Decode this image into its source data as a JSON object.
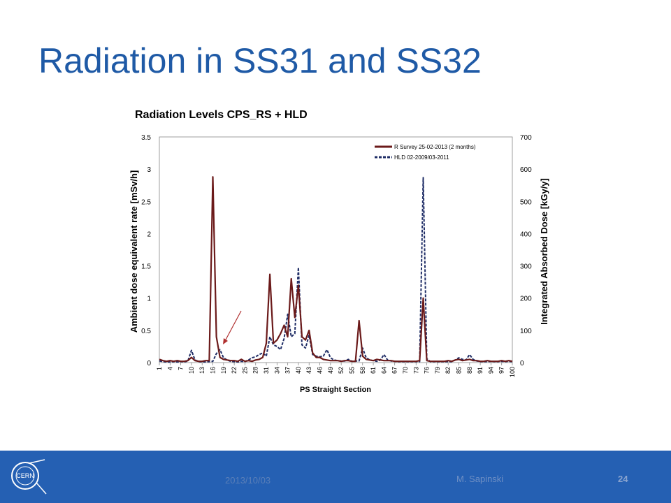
{
  "slide": {
    "title": "Radiation in SS31 and SS32",
    "footer_date": "2013/10/03",
    "footer_author": "M. Sapinski",
    "page_number": "24",
    "logo_text": "CERN",
    "footer_color": "#2560b3",
    "title_color": "#1f5aa6"
  },
  "chart_data": {
    "type": "line",
    "title": "Radiation Levels CPS_RS + HLD",
    "xlabel": "PS Straight Section",
    "ylabel": "Ambient dose equivalent rate [mSv/h]",
    "ylabel_right": "Integrated Absorbed Dose [kGy/y]",
    "ylim": [
      0,
      3.5
    ],
    "ylim_right": [
      0,
      700
    ],
    "x_tick_labels": [
      "1",
      "4",
      "7",
      "10",
      "13",
      "16",
      "19",
      "22",
      "25",
      "28",
      "31",
      "34",
      "37",
      "40",
      "43",
      "46",
      "49",
      "52",
      "55",
      "58",
      "61",
      "64",
      "67",
      "70",
      "73",
      "76",
      "79",
      "82",
      "85",
      "88",
      "91",
      "94",
      "97",
      "100"
    ],
    "y_tick_labels": [
      "0",
      "0.5",
      "1",
      "1.5",
      "2",
      "2.5",
      "3",
      "3.5"
    ],
    "y_right_tick_labels": [
      "0",
      "100",
      "200",
      "300",
      "400",
      "500",
      "600",
      "700"
    ],
    "legend_position": "top-right",
    "grid": false,
    "x": [
      1,
      2,
      3,
      4,
      5,
      6,
      7,
      8,
      9,
      10,
      11,
      12,
      13,
      14,
      15,
      16,
      17,
      18,
      19,
      20,
      21,
      22,
      23,
      24,
      25,
      26,
      27,
      28,
      29,
      30,
      31,
      32,
      33,
      34,
      35,
      36,
      37,
      38,
      39,
      40,
      41,
      42,
      43,
      44,
      45,
      46,
      47,
      48,
      49,
      50,
      51,
      52,
      53,
      54,
      55,
      56,
      57,
      58,
      59,
      60,
      61,
      62,
      63,
      64,
      65,
      66,
      67,
      68,
      69,
      70,
      71,
      72,
      73,
      74,
      75,
      76,
      77,
      78,
      79,
      80,
      81,
      82,
      83,
      84,
      85,
      86,
      87,
      88,
      89,
      90,
      91,
      92,
      93,
      94,
      95,
      96,
      97,
      98,
      99,
      100
    ],
    "series": [
      {
        "name": "R Survey 25-02-2013 (2 months)",
        "axis": "left",
        "color": "#6b1a1a",
        "style": "solid",
        "values": [
          0.05,
          0.03,
          0.02,
          0.03,
          0.02,
          0.03,
          0.02,
          0.02,
          0.03,
          0.08,
          0.03,
          0.02,
          0.02,
          0.03,
          0.03,
          2.88,
          0.4,
          0.08,
          0.05,
          0.04,
          0.03,
          0.03,
          0.02,
          0.05,
          0.02,
          0.03,
          0.02,
          0.04,
          0.05,
          0.08,
          0.3,
          1.37,
          0.3,
          0.35,
          0.45,
          0.58,
          0.4,
          1.3,
          0.7,
          1.2,
          0.4,
          0.35,
          0.5,
          0.15,
          0.08,
          0.08,
          0.05,
          0.04,
          0.03,
          0.03,
          0.03,
          0.02,
          0.03,
          0.03,
          0.02,
          0.02,
          0.65,
          0.1,
          0.05,
          0.04,
          0.03,
          0.05,
          0.04,
          0.03,
          0.03,
          0.03,
          0.02,
          0.02,
          0.02,
          0.02,
          0.02,
          0.02,
          0.02,
          0.03,
          1.0,
          0.03,
          0.02,
          0.02,
          0.02,
          0.02,
          0.02,
          0.03,
          0.02,
          0.04,
          0.05,
          0.03,
          0.04,
          0.05,
          0.03,
          0.03,
          0.02,
          0.02,
          0.03,
          0.02,
          0.02,
          0.02,
          0.03,
          0.02,
          0.03,
          0.02
        ]
      },
      {
        "name": "HLD 02-2009/03-2011",
        "axis": "right",
        "color": "#1f2d66",
        "style": "dashed",
        "values": [
          5,
          3,
          2,
          2,
          3,
          2,
          3,
          2,
          5,
          38,
          8,
          3,
          2,
          2,
          3,
          4,
          28,
          40,
          15,
          8,
          4,
          3,
          2,
          4,
          3,
          8,
          15,
          18,
          25,
          30,
          20,
          80,
          55,
          50,
          40,
          75,
          150,
          80,
          90,
          295,
          55,
          45,
          85,
          25,
          20,
          18,
          20,
          40,
          15,
          8,
          6,
          5,
          5,
          10,
          4,
          5,
          5,
          45,
          15,
          8,
          6,
          4,
          8,
          25,
          8,
          5,
          4,
          3,
          3,
          3,
          3,
          3,
          3,
          3,
          574,
          12,
          3,
          3,
          3,
          3,
          3,
          3,
          3,
          8,
          15,
          10,
          8,
          25,
          10,
          5,
          3,
          3,
          3,
          4,
          3,
          3,
          4,
          3,
          4,
          3
        ]
      }
    ]
  }
}
